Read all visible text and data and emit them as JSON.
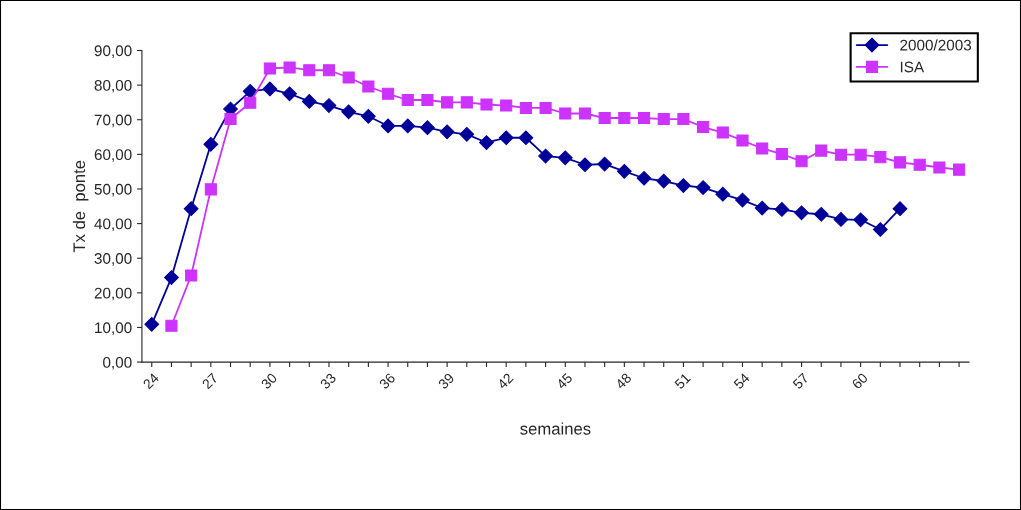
{
  "chart_data": {
    "type": "line",
    "xlabel": "semaines",
    "ylabel": "Tx de  ponte",
    "categories": [
      "24",
      null,
      null,
      "27",
      null,
      null,
      "30",
      null,
      null,
      "33",
      null,
      null,
      "36",
      null,
      null,
      "39",
      null,
      null,
      "42",
      null,
      null,
      "45",
      null,
      null,
      "48",
      null,
      null,
      "51",
      null,
      null,
      "54",
      null,
      null,
      "57",
      null,
      null,
      "60",
      null,
      null,
      null,
      null,
      null
    ],
    "series": [
      {
        "name": "2000/2003",
        "color": "#000099",
        "marker": "diamond",
        "values": [
          10.9,
          24.4,
          44.3,
          62.9,
          73.1,
          78.2,
          78.9,
          77.5,
          75.3,
          74.1,
          72.3,
          71.0,
          68.2,
          68.2,
          67.7,
          66.5,
          65.8,
          63.4,
          64.8,
          64.8,
          59.5,
          59.0,
          57.0,
          57.2,
          55.1,
          53.1,
          52.3,
          51.0,
          50.4,
          48.5,
          46.8,
          44.5,
          44.1,
          43.1,
          42.7,
          41.2,
          41.1,
          38.3,
          44.3,
          null,
          null,
          null
        ]
      },
      {
        "name": "ISA",
        "color": "#cc33ff",
        "marker": "square",
        "values": [
          null,
          10.5,
          25.0,
          49.9,
          70.2,
          74.9,
          84.8,
          85.1,
          84.3,
          84.3,
          82.2,
          79.6,
          77.5,
          75.7,
          75.7,
          75.0,
          75.0,
          74.4,
          74.1,
          73.4,
          73.4,
          71.8,
          71.8,
          70.5,
          70.5,
          70.5,
          70.2,
          70.2,
          67.9,
          66.3,
          64.0,
          61.7,
          60.1,
          58.0,
          61.1,
          59.9,
          59.9,
          59.2,
          57.7,
          57.0,
          56.2,
          55.6
        ]
      }
    ],
    "ylim": [
      0,
      90
    ],
    "yticks": [
      {
        "value": 0,
        "label": "0,00"
      },
      {
        "value": 10,
        "label": "10,00"
      },
      {
        "value": 20,
        "label": "20,00"
      },
      {
        "value": 30,
        "label": "30,00"
      },
      {
        "value": 40,
        "label": "40,00"
      },
      {
        "value": 50,
        "label": "50,00"
      },
      {
        "value": 60,
        "label": "60,00"
      },
      {
        "value": 70,
        "label": "70,00"
      },
      {
        "value": 80,
        "label": "80,00"
      },
      {
        "value": 90,
        "label": "90,00"
      }
    ],
    "grid": false,
    "legend": "top right",
    "line_style": "solid"
  }
}
